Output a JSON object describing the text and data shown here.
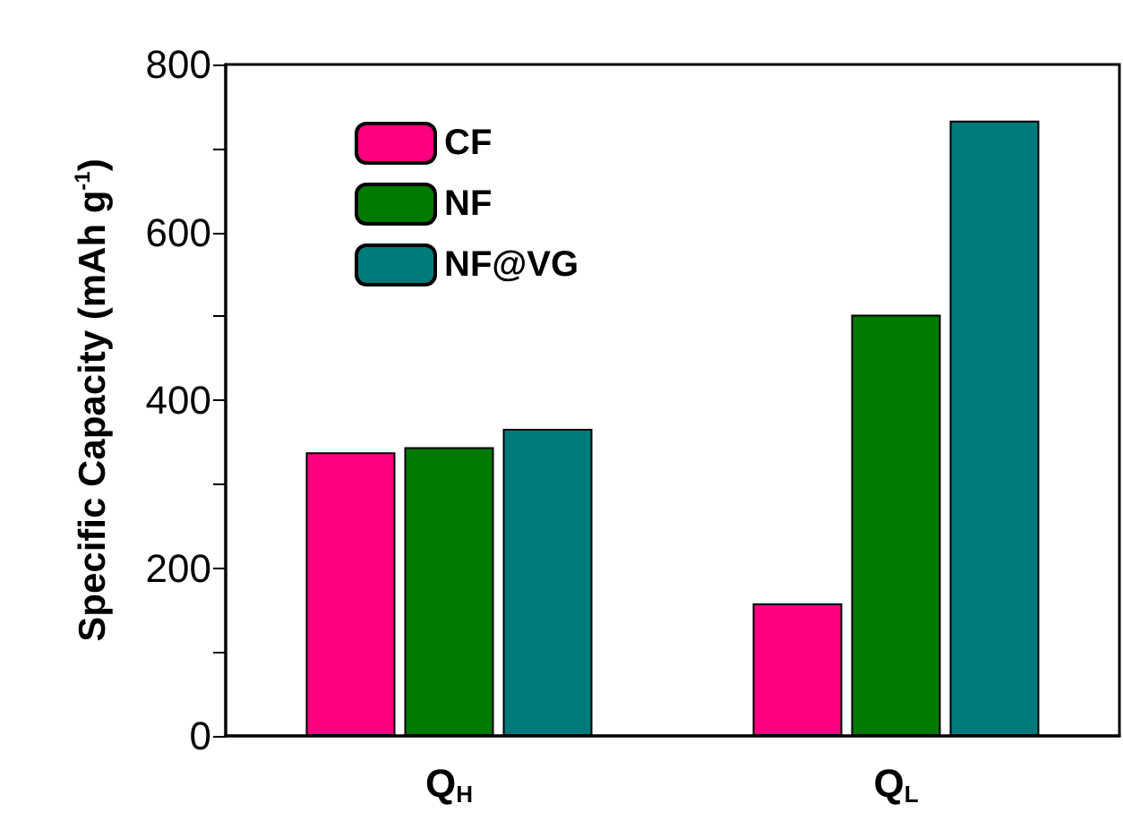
{
  "chart_data": {
    "type": "bar",
    "categories": [
      "Q$_{H}$",
      "Q$_{L}$"
    ],
    "ylabel": "Specific Capacity (mAh g$^{-1}$)",
    "ylim": [
      0,
      800
    ],
    "yticks": [
      0,
      {
        "value": 100,
        "label": null
      },
      200,
      {
        "value": 300,
        "label": null
      },
      400,
      {
        "value": 500,
        "label": null
      },
      600,
      {
        "value": 700,
        "label": null
      },
      800
    ],
    "series": [
      {
        "name": "CF",
        "color": "#ff0080",
        "values": [
          338,
          158
        ]
      },
      {
        "name": "NF",
        "color": "#007a00",
        "values": [
          344,
          502
        ]
      },
      {
        "name": "NF@VG",
        "color": "#007b7b",
        "values": [
          366,
          733
        ]
      }
    ],
    "grid": false,
    "legend": "top left"
  }
}
